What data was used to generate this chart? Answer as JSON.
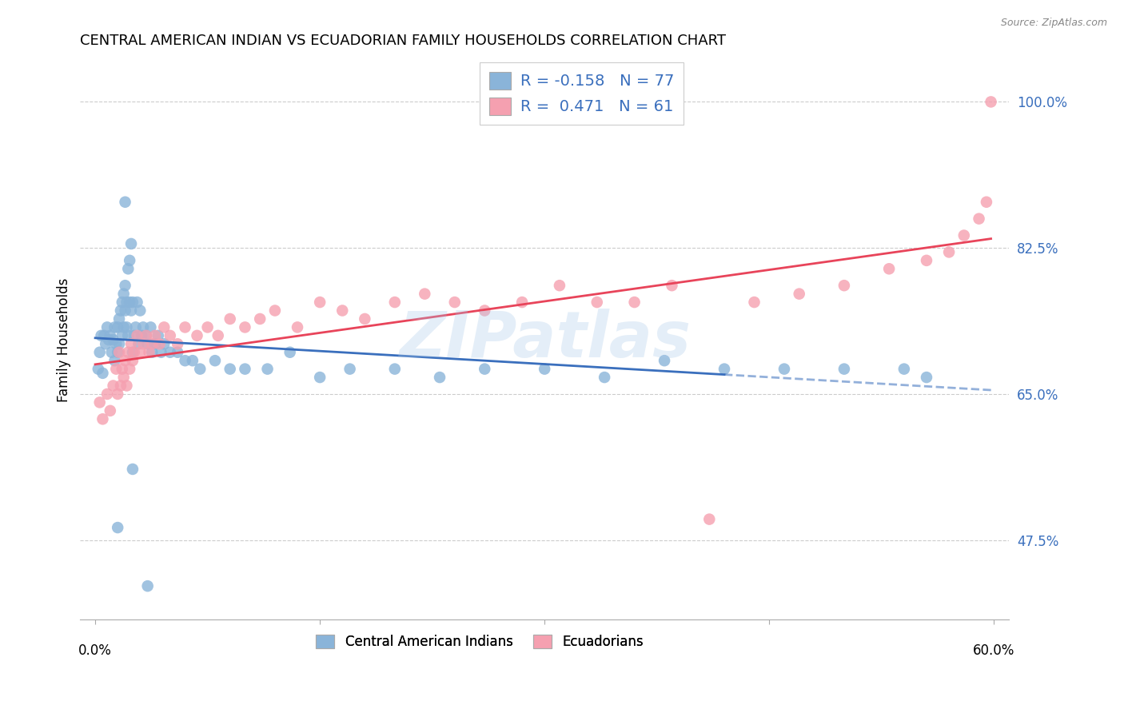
{
  "title": "CENTRAL AMERICAN INDIAN VS ECUADORIAN FAMILY HOUSEHOLDS CORRELATION CHART",
  "source": "Source: ZipAtlas.com",
  "ylabel": "Family Households",
  "yticks": [
    "47.5%",
    "65.0%",
    "82.5%",
    "100.0%"
  ],
  "ytick_vals": [
    0.475,
    0.65,
    0.825,
    1.0
  ],
  "xlim": [
    0.0,
    0.6
  ],
  "ylim": [
    0.38,
    1.05
  ],
  "blue_R": "-0.158",
  "blue_N": "77",
  "pink_R": "0.471",
  "pink_N": "61",
  "blue_color": "#8ab4d9",
  "pink_color": "#f5a0b0",
  "blue_line_color": "#3a6fbd",
  "pink_line_color": "#e8445a",
  "watermark": "ZIPatlas",
  "legend_label_blue": "Central American Indians",
  "legend_label_pink": "Ecuadorians",
  "blue_x": [
    0.002,
    0.003,
    0.004,
    0.005,
    0.006,
    0.007,
    0.008,
    0.009,
    0.01,
    0.011,
    0.012,
    0.013,
    0.013,
    0.014,
    0.015,
    0.015,
    0.016,
    0.016,
    0.017,
    0.018,
    0.018,
    0.019,
    0.019,
    0.02,
    0.02,
    0.021,
    0.021,
    0.022,
    0.022,
    0.023,
    0.023,
    0.024,
    0.024,
    0.025,
    0.025,
    0.026,
    0.027,
    0.028,
    0.029,
    0.03,
    0.031,
    0.032,
    0.034,
    0.035,
    0.037,
    0.038,
    0.04,
    0.042,
    0.044,
    0.046,
    0.05,
    0.055,
    0.06,
    0.065,
    0.07,
    0.08,
    0.09,
    0.1,
    0.115,
    0.13,
    0.15,
    0.17,
    0.2,
    0.23,
    0.26,
    0.3,
    0.34,
    0.38,
    0.42,
    0.46,
    0.5,
    0.54,
    0.555,
    0.015,
    0.025,
    0.035,
    0.02
  ],
  "blue_y": [
    0.68,
    0.7,
    0.72,
    0.675,
    0.72,
    0.71,
    0.73,
    0.715,
    0.72,
    0.7,
    0.715,
    0.73,
    0.69,
    0.71,
    0.73,
    0.7,
    0.74,
    0.71,
    0.75,
    0.72,
    0.76,
    0.73,
    0.77,
    0.75,
    0.78,
    0.76,
    0.73,
    0.8,
    0.72,
    0.81,
    0.76,
    0.75,
    0.83,
    0.76,
    0.7,
    0.72,
    0.73,
    0.76,
    0.71,
    0.75,
    0.72,
    0.73,
    0.72,
    0.71,
    0.73,
    0.7,
    0.71,
    0.72,
    0.7,
    0.71,
    0.7,
    0.7,
    0.69,
    0.69,
    0.68,
    0.69,
    0.68,
    0.68,
    0.68,
    0.7,
    0.67,
    0.68,
    0.68,
    0.67,
    0.68,
    0.68,
    0.67,
    0.69,
    0.68,
    0.68,
    0.68,
    0.68,
    0.67,
    0.49,
    0.56,
    0.42,
    0.88
  ],
  "pink_x": [
    0.003,
    0.005,
    0.008,
    0.01,
    0.012,
    0.014,
    0.015,
    0.016,
    0.017,
    0.018,
    0.019,
    0.02,
    0.021,
    0.022,
    0.023,
    0.024,
    0.025,
    0.026,
    0.028,
    0.03,
    0.032,
    0.034,
    0.036,
    0.038,
    0.04,
    0.043,
    0.046,
    0.05,
    0.055,
    0.06,
    0.068,
    0.075,
    0.082,
    0.09,
    0.1,
    0.11,
    0.12,
    0.135,
    0.15,
    0.165,
    0.18,
    0.2,
    0.22,
    0.24,
    0.26,
    0.285,
    0.31,
    0.335,
    0.36,
    0.385,
    0.41,
    0.44,
    0.47,
    0.5,
    0.53,
    0.555,
    0.57,
    0.58,
    0.59,
    0.595,
    0.598
  ],
  "pink_y": [
    0.64,
    0.62,
    0.65,
    0.63,
    0.66,
    0.68,
    0.65,
    0.7,
    0.66,
    0.68,
    0.67,
    0.69,
    0.66,
    0.7,
    0.68,
    0.71,
    0.69,
    0.7,
    0.72,
    0.7,
    0.71,
    0.72,
    0.7,
    0.71,
    0.72,
    0.71,
    0.73,
    0.72,
    0.71,
    0.73,
    0.72,
    0.73,
    0.72,
    0.74,
    0.73,
    0.74,
    0.75,
    0.73,
    0.76,
    0.75,
    0.74,
    0.76,
    0.77,
    0.76,
    0.75,
    0.76,
    0.78,
    0.76,
    0.76,
    0.78,
    0.5,
    0.76,
    0.77,
    0.78,
    0.8,
    0.81,
    0.82,
    0.84,
    0.86,
    0.88,
    1.0
  ]
}
